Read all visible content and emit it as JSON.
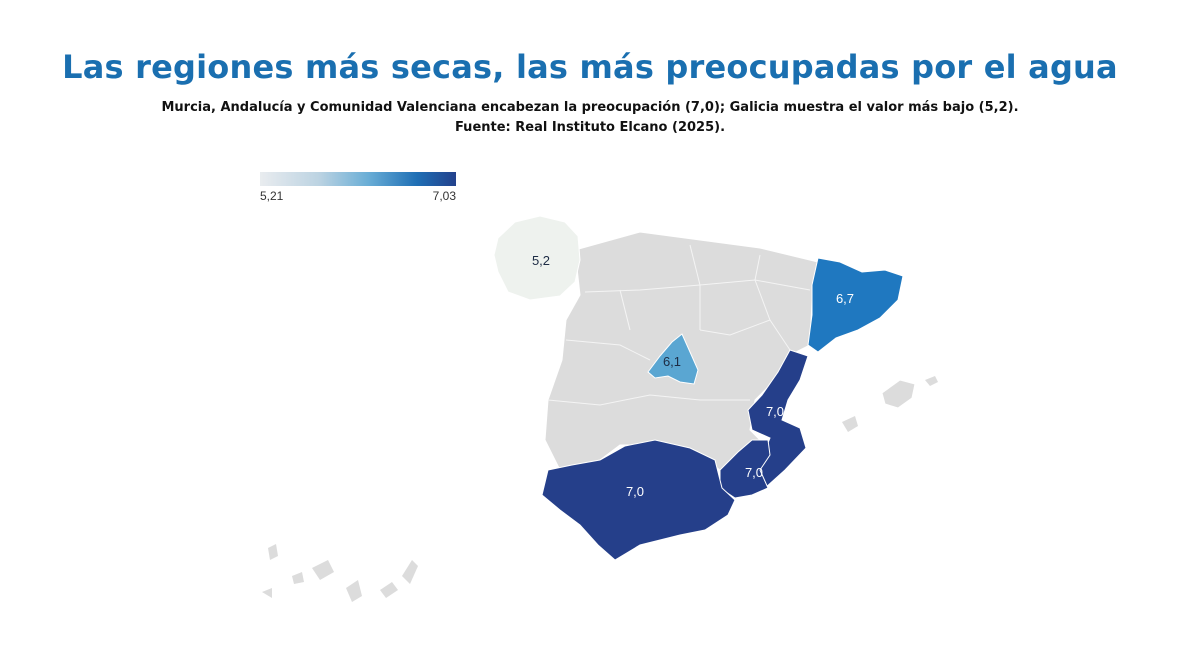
{
  "header": {
    "title": "Las regiones más secas, las más preocupadas por el agua",
    "subtitle_line1": "Murcia, Andalucía y Comunidad Valenciana encabezan la preocupación (7,0); Galicia muestra el valor más bajo (5,2).",
    "subtitle_line2": "Fuente: Real Instituto Elcano (2025)."
  },
  "legend": {
    "min_label": "5,21",
    "max_label": "7,03",
    "colors": [
      "#e9ecef",
      "#bcd3e2",
      "#6aaed6",
      "#1f6fb5",
      "#23418c"
    ]
  },
  "map": {
    "regions": [
      {
        "name": "Galicia",
        "value_label": "5,2",
        "color": "#eef2ee"
      },
      {
        "name": "Cataluña",
        "value_label": "6,7",
        "color": "#1f78c0"
      },
      {
        "name": "Madrid",
        "value_label": "6,1",
        "color": "#5aa6d2"
      },
      {
        "name": "Comunidad Valenciana",
        "value_label": "7,0",
        "color": "#253f8a"
      },
      {
        "name": "Murcia",
        "value_label": "7,0",
        "color": "#253f8a"
      },
      {
        "name": "Andalucía",
        "value_label": "7,0",
        "color": "#253f8a"
      }
    ],
    "other_region_color": "#dcdcdc",
    "border_color": "#ffffff"
  }
}
